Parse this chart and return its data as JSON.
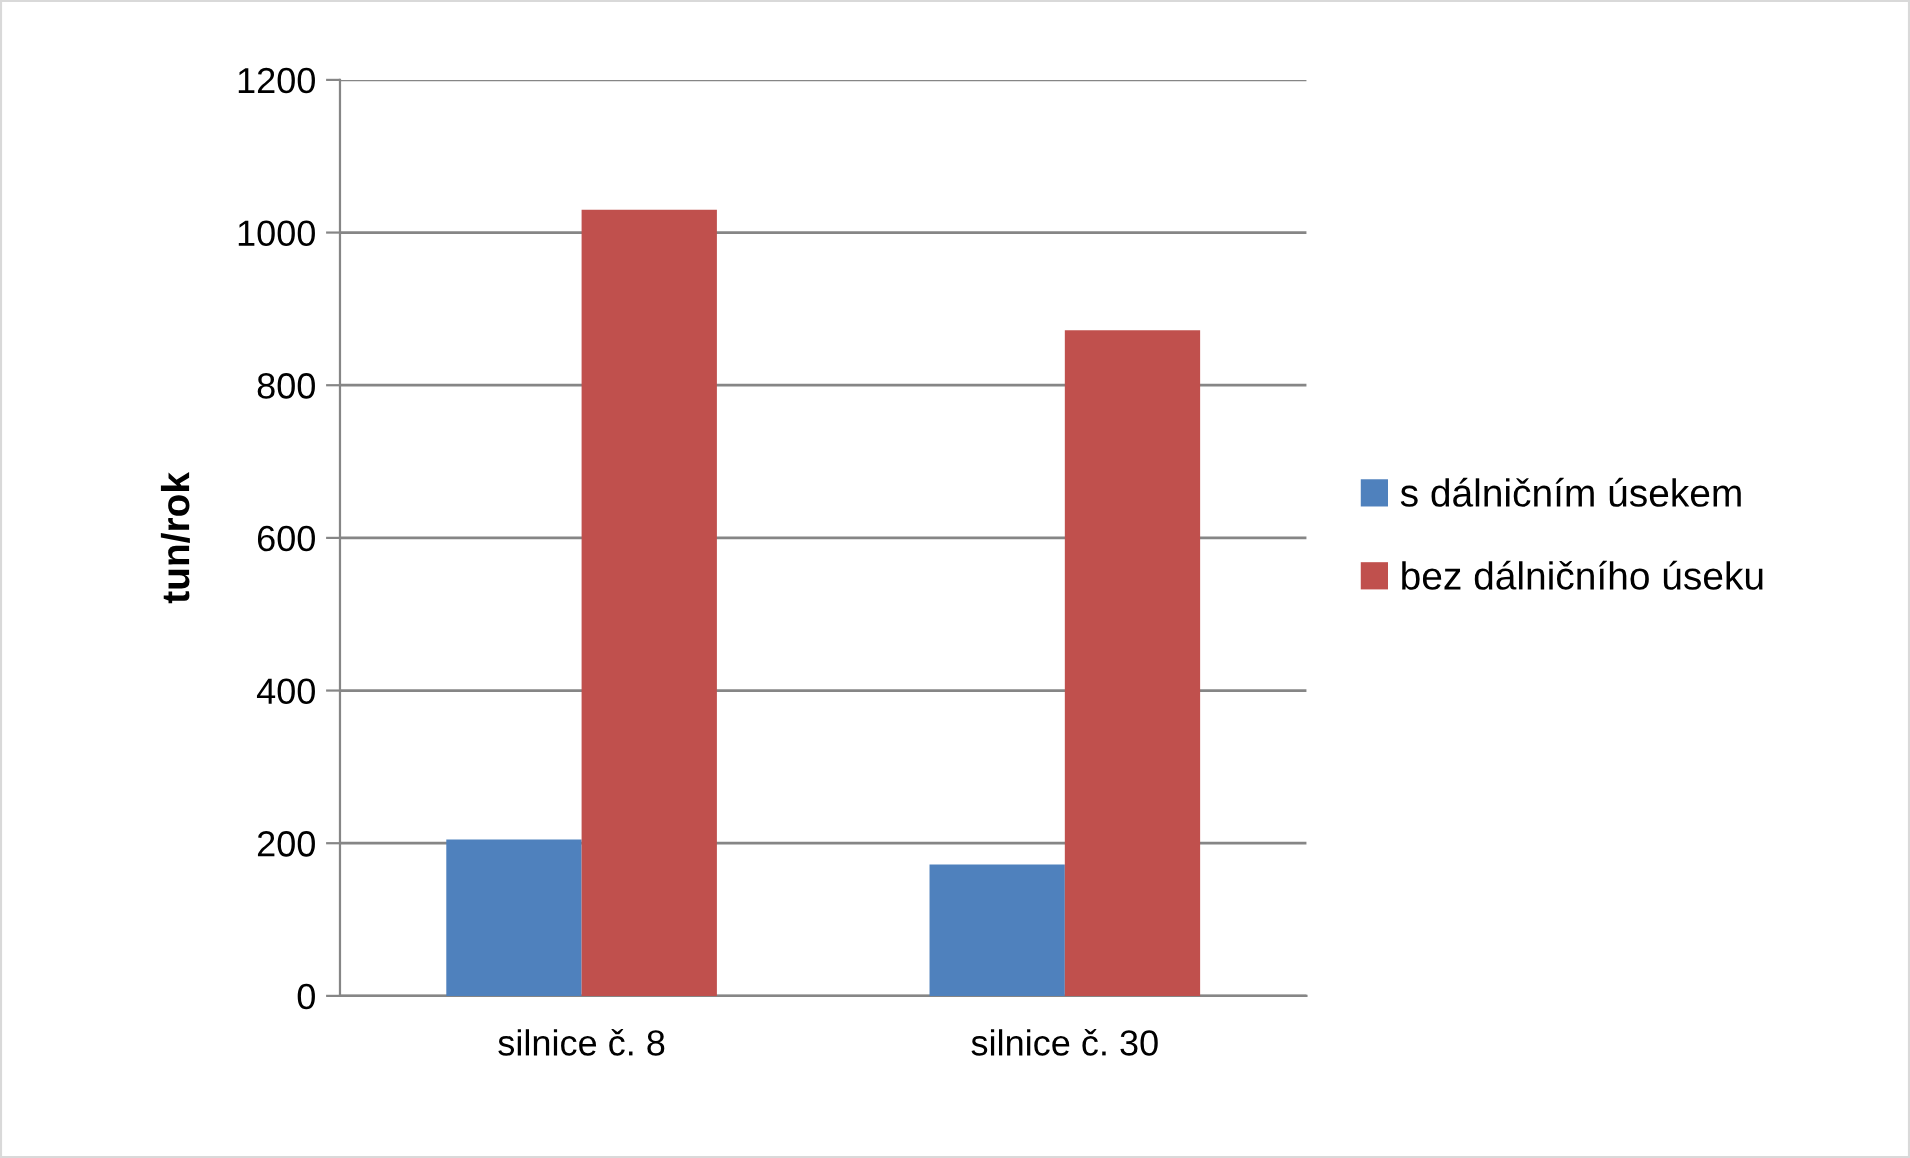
{
  "chart_data": {
    "type": "bar",
    "ylabel": "tun/rok",
    "categories": [
      "silnice č. 8",
      "silnice č. 30"
    ],
    "series": [
      {
        "name": "s dálničním úsekem",
        "color": "#4f81bd",
        "values": [
          205,
          172
        ]
      },
      {
        "name": "bez dálničního úseku",
        "color": "#c0504d",
        "values": [
          1030,
          872
        ]
      }
    ],
    "ylim": [
      0,
      1200
    ],
    "yticks": [
      0,
      200,
      400,
      600,
      800,
      1000,
      1200
    ],
    "grid": "y",
    "legend": "right"
  }
}
